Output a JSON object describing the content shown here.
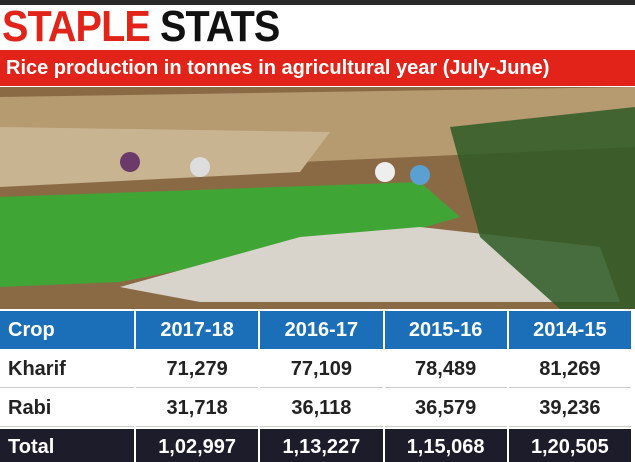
{
  "header": {
    "title_red": "STAPLE",
    "title_black": "STATS",
    "subtitle": "Rice production in tonnes in agricultural year (July-June)"
  },
  "table": {
    "columns": [
      "Crop",
      "2017-18",
      "2016-17",
      "2015-16",
      "2014-15"
    ],
    "rows": [
      [
        "Kharif",
        "71,279",
        "77,109",
        "78,489",
        "81,269"
      ],
      [
        "Rabi",
        "31,718",
        "36,118",
        "36,579",
        "39,236"
      ],
      [
        "Total",
        "1,02,997",
        "1,13,227",
        "1,15,068",
        "1,20,505"
      ]
    ]
  }
}
